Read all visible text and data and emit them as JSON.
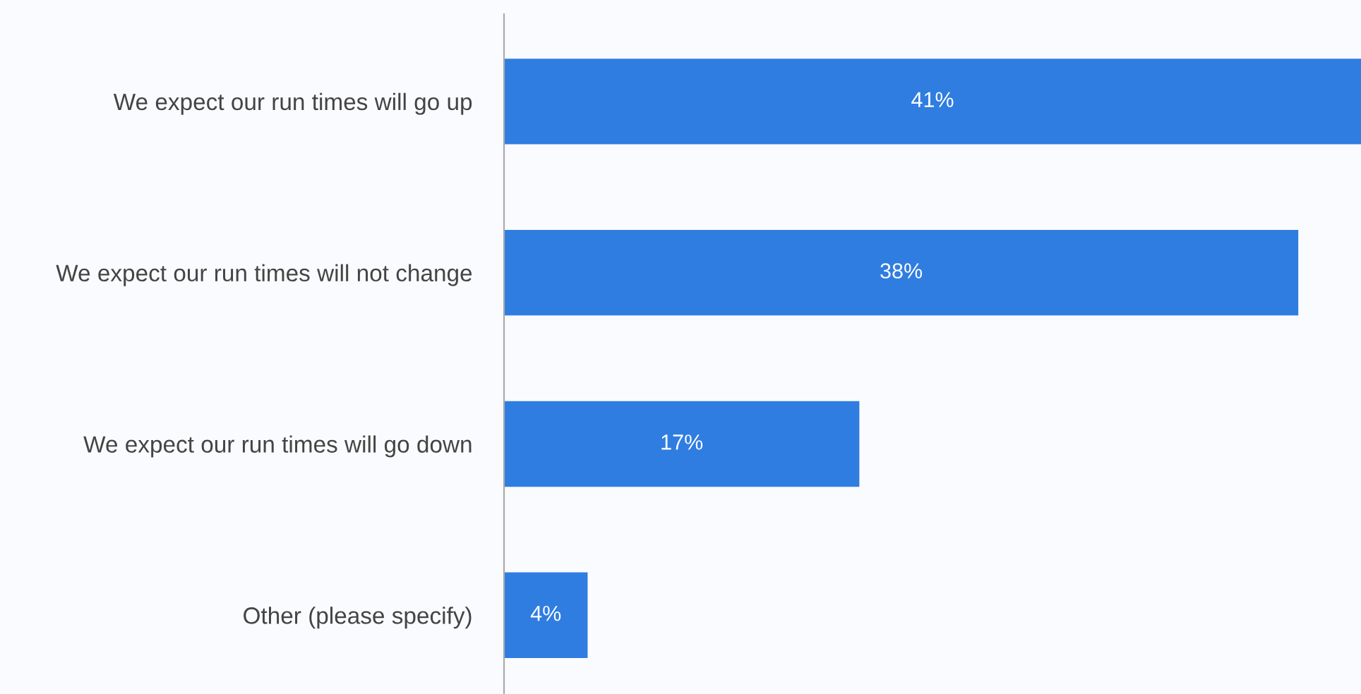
{
  "chart_data": {
    "type": "bar",
    "orientation": "horizontal",
    "categories": [
      "We expect our run times will go up",
      "We expect our run times will not change",
      "We expect our run times will go down",
      "Other (please specify)"
    ],
    "values": [
      41,
      38,
      17,
      4
    ],
    "value_labels": [
      "41%",
      "38%",
      "17%",
      "4%"
    ],
    "color": "#2f7de1",
    "grid": false,
    "legend": false
  }
}
